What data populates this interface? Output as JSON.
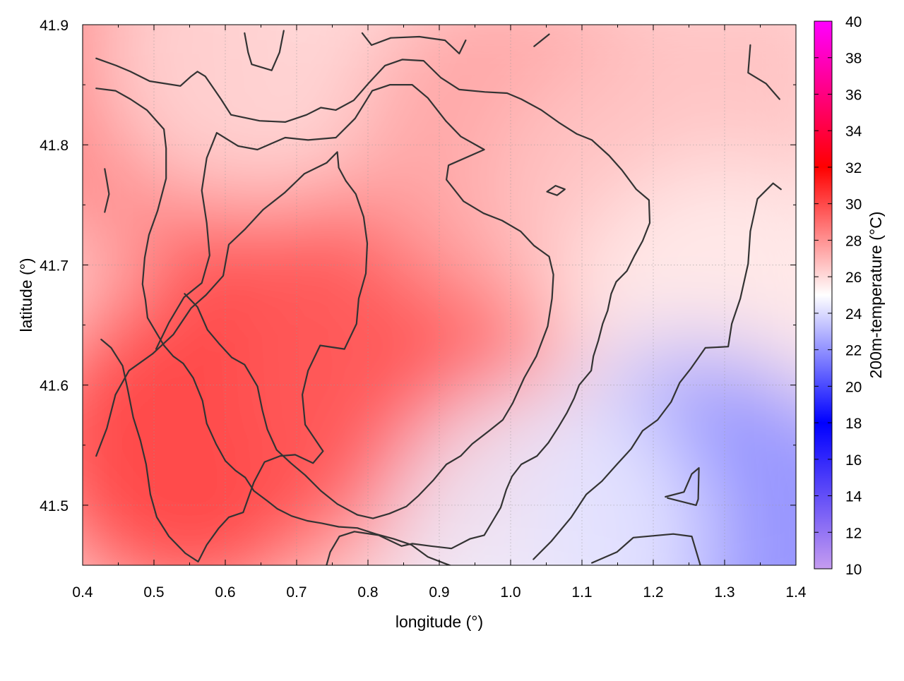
{
  "chart_data": {
    "type": "heatmap",
    "xlabel": "longitude (°)",
    "ylabel": "latitude (°)",
    "colorbar_label": "200m-temperature (°C)",
    "xlim": [
      0.4,
      1.4
    ],
    "ylim": [
      41.45,
      41.9
    ],
    "xticks": [
      0.4,
      0.5,
      0.6,
      0.7,
      0.8,
      0.9,
      1.0,
      1.1,
      1.2,
      1.3,
      1.4
    ],
    "xtick_labels": [
      "0.4",
      "0.5",
      "0.6",
      "0.7",
      "0.8",
      "0.9",
      "1.0",
      "1.1",
      "1.2",
      "1.3",
      "1.4"
    ],
    "yticks": [
      41.5,
      41.6,
      41.7,
      41.8,
      41.9
    ],
    "ytick_labels": [
      "41.5",
      "41.6",
      "41.7",
      "41.8",
      "41.9"
    ],
    "colorbar_range": [
      10,
      40
    ],
    "colorbar_ticks": [
      10,
      12,
      14,
      16,
      18,
      20,
      22,
      24,
      26,
      28,
      30,
      32,
      34,
      36,
      38,
      40
    ],
    "colorbar_tick_labels": [
      "10",
      "12",
      "14",
      "16",
      "18",
      "20",
      "22",
      "24",
      "26",
      "28",
      "30",
      "32",
      "34",
      "36",
      "38",
      "40"
    ],
    "grid": true,
    "colorscale": [
      {
        "value": 10,
        "color": "#c59cf0"
      },
      {
        "value": 18,
        "color": "#0000ff"
      },
      {
        "value": 25,
        "color": "#ffffff"
      },
      {
        "value": 32,
        "color": "#ff0000"
      },
      {
        "value": 40,
        "color": "#ff00ff"
      }
    ],
    "field_samples": [
      {
        "lon": 0.45,
        "lat": 41.85,
        "temp": 28.5
      },
      {
        "lon": 0.55,
        "lat": 41.55,
        "temp": 30.5
      },
      {
        "lon": 0.7,
        "lat": 41.65,
        "temp": 30.0
      },
      {
        "lon": 0.85,
        "lat": 41.6,
        "temp": 29.5
      },
      {
        "lon": 0.65,
        "lat": 41.88,
        "temp": 26.0
      },
      {
        "lon": 1.0,
        "lat": 41.8,
        "temp": 27.5
      },
      {
        "lon": 1.2,
        "lat": 41.75,
        "temp": 26.5
      },
      {
        "lon": 1.3,
        "lat": 41.65,
        "temp": 25.5
      },
      {
        "lon": 1.25,
        "lat": 41.5,
        "temp": 22.5
      },
      {
        "lon": 1.33,
        "lat": 41.47,
        "temp": 22.0
      },
      {
        "lon": 1.05,
        "lat": 41.47,
        "temp": 24.5
      }
    ],
    "contours": [
      [
        [
          0.419,
          41.872
        ],
        [
          0.447,
          41.866
        ],
        [
          0.467,
          41.861
        ],
        [
          0.494,
          41.853
        ],
        [
          0.537,
          41.849
        ],
        [
          0.552,
          41.857
        ],
        [
          0.561,
          41.861
        ],
        [
          0.572,
          41.857
        ],
        [
          0.594,
          41.838
        ],
        [
          0.608,
          41.825
        ],
        [
          0.648,
          41.82
        ],
        [
          0.684,
          41.819
        ],
        [
          0.714,
          41.825
        ],
        [
          0.734,
          41.831
        ],
        [
          0.755,
          41.829
        ],
        [
          0.78,
          41.837
        ],
        [
          0.802,
          41.852
        ],
        [
          0.824,
          41.866
        ],
        [
          0.848,
          41.871
        ],
        [
          0.878,
          41.87
        ],
        [
          0.902,
          41.856
        ],
        [
          0.928,
          41.846
        ],
        [
          0.964,
          41.844
        ],
        [
          0.995,
          41.843
        ],
        [
          1.015,
          41.838
        ],
        [
          1.043,
          41.829
        ],
        [
          1.069,
          41.818
        ],
        [
          1.093,
          41.809
        ],
        [
          1.114,
          41.804
        ],
        [
          1.138,
          41.791
        ],
        [
          1.156,
          41.779
        ],
        [
          1.176,
          41.763
        ],
        [
          1.194,
          41.754
        ],
        [
          1.195,
          41.735
        ],
        [
          1.185,
          41.72
        ],
        [
          1.174,
          41.708
        ],
        [
          1.163,
          41.695
        ],
        [
          1.148,
          41.686
        ],
        [
          1.141,
          41.676
        ],
        [
          1.136,
          41.662
        ],
        [
          1.129,
          41.651
        ],
        [
          1.123,
          41.637
        ],
        [
          1.116,
          41.624
        ],
        [
          1.113,
          41.612
        ],
        [
          1.096,
          41.6
        ],
        [
          1.089,
          41.589
        ],
        [
          1.079,
          41.577
        ],
        [
          1.067,
          41.565
        ],
        [
          1.053,
          41.552
        ],
        [
          1.037,
          41.541
        ],
        [
          1.015,
          41.534
        ],
        [
          1.002,
          41.524
        ],
        [
          0.994,
          41.513
        ],
        [
          0.986,
          41.498
        ],
        [
          0.975,
          41.487
        ],
        [
          0.963,
          41.475
        ],
        [
          0.943,
          41.472
        ],
        [
          0.917,
          41.464
        ],
        [
          0.888,
          41.466
        ],
        [
          0.862,
          41.468
        ],
        [
          0.847,
          41.466
        ],
        [
          0.815,
          41.475
        ],
        [
          0.781,
          41.478
        ],
        [
          0.76,
          41.474
        ],
        [
          0.747,
          41.461
        ],
        [
          0.74,
          41.446
        ]
      ],
      [
        [
          0.419,
          41.847
        ],
        [
          0.446,
          41.845
        ],
        [
          0.467,
          41.838
        ],
        [
          0.49,
          41.829
        ],
        [
          0.514,
          41.813
        ],
        [
          0.517,
          41.797
        ],
        [
          0.517,
          41.772
        ],
        [
          0.505,
          41.745
        ],
        [
          0.493,
          41.725
        ],
        [
          0.487,
          41.706
        ],
        [
          0.484,
          41.684
        ],
        [
          0.488,
          41.671
        ],
        [
          0.491,
          41.656
        ],
        [
          0.503,
          41.644
        ],
        [
          0.514,
          41.633
        ],
        [
          0.527,
          41.624
        ],
        [
          0.541,
          41.618
        ],
        [
          0.555,
          41.606
        ],
        [
          0.568,
          41.587
        ],
        [
          0.574,
          41.568
        ],
        [
          0.587,
          41.551
        ],
        [
          0.6,
          41.537
        ],
        [
          0.614,
          41.529
        ],
        [
          0.628,
          41.523
        ],
        [
          0.64,
          41.512
        ],
        [
          0.658,
          41.504
        ],
        [
          0.673,
          41.497
        ],
        [
          0.693,
          41.491
        ],
        [
          0.715,
          41.487
        ],
        [
          0.735,
          41.485
        ],
        [
          0.759,
          41.482
        ],
        [
          0.785,
          41.481
        ],
        [
          0.811,
          41.476
        ],
        [
          0.836,
          41.472
        ],
        [
          0.861,
          41.467
        ],
        [
          0.884,
          41.457
        ],
        [
          0.91,
          41.451
        ],
        [
          0.933,
          41.446
        ]
      ],
      [
        [
          0.431,
          41.78
        ],
        [
          0.434,
          41.77
        ],
        [
          0.437,
          41.759
        ],
        [
          0.431,
          41.744
        ]
      ],
      [
        [
          0.503,
          41.63
        ],
        [
          0.521,
          41.652
        ],
        [
          0.542,
          41.673
        ],
        [
          0.567,
          41.685
        ],
        [
          0.578,
          41.708
        ],
        [
          0.574,
          41.735
        ],
        [
          0.567,
          41.762
        ],
        [
          0.574,
          41.789
        ],
        [
          0.588,
          41.81
        ],
        [
          0.618,
          41.799
        ],
        [
          0.645,
          41.796
        ],
        [
          0.684,
          41.806
        ],
        [
          0.716,
          41.804
        ],
        [
          0.755,
          41.806
        ],
        [
          0.782,
          41.822
        ],
        [
          0.806,
          41.845
        ],
        [
          0.831,
          41.85
        ],
        [
          0.862,
          41.85
        ],
        [
          0.884,
          41.839
        ],
        [
          0.909,
          41.82
        ],
        [
          0.93,
          41.807
        ],
        [
          0.963,
          41.796
        ],
        [
          0.913,
          41.783
        ],
        [
          0.91,
          41.771
        ],
        [
          0.934,
          41.753
        ],
        [
          0.962,
          41.743
        ],
        [
          0.988,
          41.737
        ],
        [
          1.014,
          41.728
        ],
        [
          1.033,
          41.716
        ],
        [
          1.054,
          41.707
        ],
        [
          1.06,
          41.692
        ],
        [
          1.058,
          41.672
        ],
        [
          1.052,
          41.649
        ],
        [
          1.036,
          41.624
        ],
        [
          1.019,
          41.606
        ],
        [
          1.003,
          41.585
        ],
        [
          0.989,
          41.571
        ],
        [
          0.97,
          41.562
        ],
        [
          0.946,
          41.551
        ],
        [
          0.93,
          41.541
        ],
        [
          0.91,
          41.534
        ],
        [
          0.892,
          41.521
        ],
        [
          0.871,
          41.508
        ],
        [
          0.854,
          41.499
        ],
        [
          0.83,
          41.493
        ],
        [
          0.807,
          41.489
        ],
        [
          0.785,
          41.492
        ],
        [
          0.757,
          41.501
        ],
        [
          0.734,
          41.512
        ],
        [
          0.712,
          41.525
        ],
        [
          0.692,
          41.535
        ],
        [
          0.672,
          41.546
        ],
        [
          0.659,
          41.563
        ],
        [
          0.652,
          41.579
        ],
        [
          0.645,
          41.599
        ],
        [
          0.627,
          41.617
        ],
        [
          0.609,
          41.623
        ],
        [
          0.592,
          41.634
        ],
        [
          0.575,
          41.646
        ],
        [
          0.561,
          41.665
        ],
        [
          0.543,
          41.676
        ]
      ],
      [
        [
          0.419,
          41.541
        ],
        [
          0.434,
          41.564
        ],
        [
          0.446,
          41.592
        ],
        [
          0.465,
          41.612
        ],
        [
          0.498,
          41.626
        ],
        [
          0.527,
          41.642
        ],
        [
          0.552,
          41.664
        ],
        [
          0.573,
          41.675
        ],
        [
          0.597,
          41.691
        ],
        [
          0.605,
          41.717
        ],
        [
          0.628,
          41.73
        ],
        [
          0.653,
          41.746
        ],
        [
          0.683,
          41.76
        ],
        [
          0.711,
          41.776
        ],
        [
          0.742,
          41.785
        ],
        [
          0.757,
          41.794
        ],
        [
          0.759,
          41.781
        ],
        [
          0.769,
          41.77
        ],
        [
          0.783,
          41.759
        ],
        [
          0.794,
          41.74
        ],
        [
          0.799,
          41.718
        ],
        [
          0.797,
          41.693
        ],
        [
          0.787,
          41.672
        ],
        [
          0.784,
          41.651
        ],
        [
          0.767,
          41.63
        ],
        [
          0.733,
          41.633
        ],
        [
          0.716,
          41.612
        ],
        [
          0.708,
          41.592
        ],
        [
          0.712,
          41.567
        ],
        [
          0.737,
          41.545
        ],
        [
          0.723,
          41.535
        ],
        [
          0.698,
          41.542
        ],
        [
          0.677,
          41.541
        ],
        [
          0.655,
          41.536
        ],
        [
          0.64,
          41.519
        ],
        [
          0.625,
          41.494
        ],
        [
          0.605,
          41.49
        ],
        [
          0.591,
          41.481
        ],
        [
          0.574,
          41.467
        ],
        [
          0.562,
          41.453
        ],
        [
          0.544,
          41.46
        ],
        [
          0.521,
          41.474
        ],
        [
          0.504,
          41.49
        ],
        [
          0.495,
          41.509
        ],
        [
          0.489,
          41.534
        ],
        [
          0.481,
          41.554
        ],
        [
          0.471,
          41.573
        ],
        [
          0.463,
          41.597
        ],
        [
          0.456,
          41.616
        ],
        [
          0.44,
          41.631
        ],
        [
          0.426,
          41.638
        ]
      ],
      [
        [
          1.032,
          41.455
        ],
        [
          1.057,
          41.47
        ],
        [
          1.085,
          41.49
        ],
        [
          1.106,
          41.509
        ],
        [
          1.128,
          41.52
        ],
        [
          1.149,
          41.534
        ],
        [
          1.169,
          41.547
        ],
        [
          1.185,
          41.562
        ],
        [
          1.206,
          41.571
        ],
        [
          1.225,
          41.586
        ],
        [
          1.237,
          41.602
        ],
        [
          1.253,
          41.614
        ],
        [
          1.273,
          41.631
        ],
        [
          1.305,
          41.632
        ],
        [
          1.31,
          41.651
        ],
        [
          1.322,
          41.672
        ],
        [
          1.333,
          41.701
        ],
        [
          1.336,
          41.728
        ],
        [
          1.346,
          41.755
        ],
        [
          1.368,
          41.768
        ],
        [
          1.379,
          41.763
        ]
      ],
      [
        [
          1.217,
          41.507
        ],
        [
          1.243,
          41.511
        ],
        [
          1.254,
          41.526
        ],
        [
          1.264,
          41.531
        ],
        [
          1.263,
          41.505
        ],
        [
          1.26,
          41.5
        ],
        [
          1.22,
          41.506
        ]
      ],
      [
        [
          1.114,
          41.452
        ],
        [
          1.149,
          41.461
        ],
        [
          1.172,
          41.473
        ],
        [
          1.228,
          41.476
        ],
        [
          1.254,
          41.474
        ],
        [
          1.268,
          41.446
        ]
      ],
      [
        [
          1.051,
          41.761
        ],
        [
          1.063,
          41.766
        ],
        [
          1.076,
          41.763
        ],
        [
          1.065,
          41.758
        ],
        [
          1.051,
          41.761
        ]
      ],
      [
        [
          0.627,
          41.893
        ],
        [
          0.632,
          41.877
        ],
        [
          0.637,
          41.867
        ],
        [
          0.665,
          41.862
        ],
        [
          0.676,
          41.877
        ],
        [
          0.682,
          41.895
        ]
      ],
      [
        [
          0.792,
          41.893
        ],
        [
          0.805,
          41.883
        ],
        [
          0.832,
          41.889
        ],
        [
          0.872,
          41.89
        ],
        [
          0.908,
          41.887
        ],
        [
          0.928,
          41.876
        ],
        [
          0.937,
          41.887
        ]
      ],
      [
        [
          1.033,
          41.882
        ],
        [
          1.054,
          41.892
        ]
      ],
      [
        [
          1.336,
          41.883
        ],
        [
          1.333,
          41.86
        ],
        [
          1.358,
          41.851
        ],
        [
          1.377,
          41.838
        ]
      ]
    ]
  }
}
